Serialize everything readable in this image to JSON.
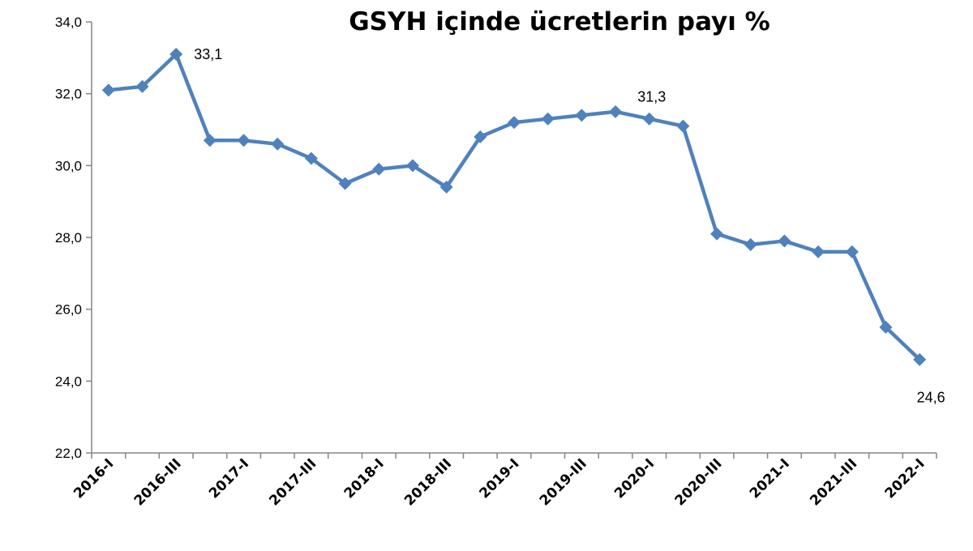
{
  "chart_data": {
    "type": "line",
    "title": "GSYH içinde ücretlerin payı %",
    "xlabel": "",
    "ylabel": "",
    "ylim": [
      22,
      34
    ],
    "y_ticks": [
      "22,0",
      "24,0",
      "26,0",
      "28,0",
      "30,0",
      "32,0",
      "34,0"
    ],
    "y_tick_values": [
      22,
      24,
      26,
      28,
      30,
      32,
      34
    ],
    "categories": [
      "2016-I",
      "2016-II",
      "2016-III",
      "2016-IV",
      "2017-I",
      "2017-II",
      "2017-III",
      "2017-IV",
      "2018-I",
      "2018-II",
      "2018-III",
      "2018-IV",
      "2019-I",
      "2019-II",
      "2019-III",
      "2019-IV",
      "2020-I",
      "2020-II",
      "2020-III",
      "2020-IV",
      "2021-I",
      "2021-II",
      "2021-III",
      "2021-IV",
      "2022-I"
    ],
    "x_tick_labels": [
      "2016-I",
      "2016-III",
      "2017-I",
      "2017-III",
      "2018-I",
      "2018-III",
      "2019-I",
      "2019-III",
      "2020-I",
      "2020-III",
      "2021-I",
      "2021-III",
      "2022-I"
    ],
    "series": [
      {
        "values": [
          32.1,
          32.2,
          33.1,
          30.7,
          30.7,
          30.6,
          30.2,
          29.5,
          29.9,
          30.0,
          29.4,
          30.8,
          31.2,
          31.3,
          31.4,
          31.5,
          31.3,
          31.1,
          28.1,
          27.8,
          27.9,
          27.6,
          27.6,
          25.5,
          24.6
        ],
        "color": "#4f81bd",
        "marker": "diamond"
      }
    ],
    "data_labels": [
      {
        "index": 2,
        "text": "33,1",
        "position": "right"
      },
      {
        "index": 16,
        "text": "31,3",
        "position": "above"
      },
      {
        "index": 24,
        "text": "24,6",
        "position": "below"
      }
    ],
    "grid": false,
    "legend": "none"
  }
}
